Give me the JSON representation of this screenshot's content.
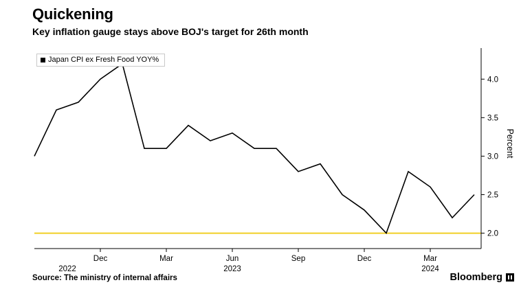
{
  "header": {
    "title": "Quickening",
    "subtitle": "Key inflation gauge stays above BOJ's target for 26th month"
  },
  "legend": {
    "marker_icon": "black-square",
    "label": "Japan CPI ex Fresh Food YOY%"
  },
  "footer": {
    "source": "Source: The ministry of internal affairs",
    "brand": "Bloomberg"
  },
  "colors": {
    "series_line": "#000000",
    "target_line": "#f0cf24",
    "axis": "#000000"
  },
  "chart_data": {
    "type": "line",
    "title": "Quickening",
    "subtitle": "Key inflation gauge stays above BOJ's target for 26th month",
    "ylabel": "Percent",
    "xlabel": "",
    "grid": false,
    "legend_position": "top-left",
    "ylim": [
      1.8,
      4.35
    ],
    "yticks": [
      2.0,
      2.5,
      3.0,
      3.5,
      4.0
    ],
    "series": [
      {
        "name": "Japan CPI ex Fresh Food YOY%",
        "color": "#000000",
        "x": [
          "2022-09",
          "2022-10",
          "2022-11",
          "2022-12",
          "2023-01",
          "2023-02",
          "2023-03",
          "2023-04",
          "2023-05",
          "2023-06",
          "2023-07",
          "2023-08",
          "2023-09",
          "2023-10",
          "2023-11",
          "2023-12",
          "2024-01",
          "2024-02",
          "2024-03",
          "2024-04",
          "2024-05"
        ],
        "values": [
          3.0,
          3.6,
          3.7,
          4.0,
          4.2,
          3.1,
          3.1,
          3.4,
          3.2,
          3.3,
          3.1,
          3.1,
          2.8,
          2.9,
          2.5,
          2.3,
          2.0,
          2.8,
          2.6,
          2.2,
          2.5
        ]
      }
    ],
    "reference_line": {
      "value": 2.0,
      "color": "#f0cf24"
    },
    "xticks": [
      {
        "label": "Dec",
        "monthIndex": 3
      },
      {
        "label": "Mar",
        "monthIndex": 6
      },
      {
        "label": "Jun",
        "monthIndex": 9
      },
      {
        "label": "Sep",
        "monthIndex": 12
      },
      {
        "label": "Dec",
        "monthIndex": 15
      },
      {
        "label": "Mar",
        "monthIndex": 18
      }
    ],
    "yearLabels": [
      {
        "label": "2022",
        "monthIndex": 1.5
      },
      {
        "label": "2023",
        "monthIndex": 9
      },
      {
        "label": "2024",
        "monthIndex": 18
      }
    ]
  }
}
